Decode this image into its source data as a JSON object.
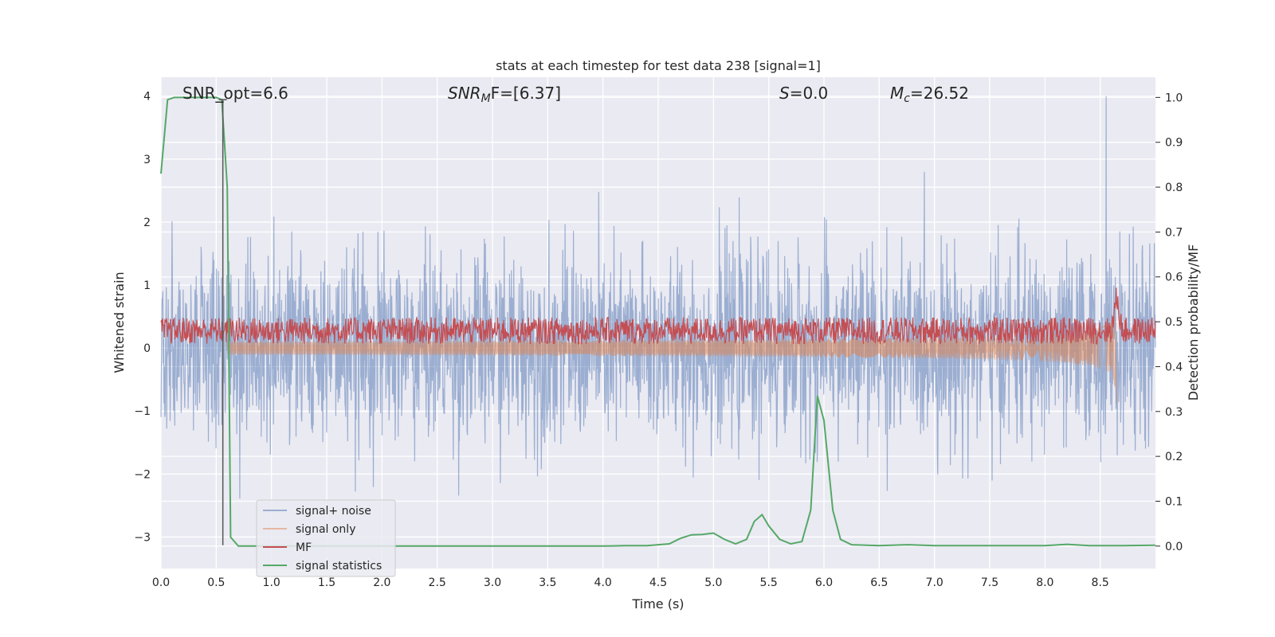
{
  "chart_data": {
    "type": "line",
    "title": "stats at each timestep for test data 238 [signal=1]",
    "xlabel": "Time (s)",
    "ylabel_left": "Whitened strain",
    "ylabel_right": "Detection probability/MF",
    "xlim": [
      0.0,
      9.0
    ],
    "ylim_left": [
      -3.5,
      4.3
    ],
    "ylim_right": [
      -0.05,
      1.045
    ],
    "x_ticks": [
      "0.0",
      "0.5",
      "1.0",
      "1.5",
      "2.0",
      "2.5",
      "3.0",
      "3.5",
      "4.0",
      "4.5",
      "5.0",
      "5.5",
      "6.0",
      "6.5",
      "7.0",
      "7.5",
      "8.0",
      "8.5"
    ],
    "y_left_ticks": [
      "4",
      "3",
      "2",
      "1",
      "0",
      "−1",
      "−2",
      "−3"
    ],
    "y_right_ticks": [
      "1.0",
      "0.9",
      "0.8",
      "0.7",
      "0.6",
      "0.5",
      "0.4",
      "0.3",
      "0.2",
      "0.1",
      "0.0"
    ],
    "grid": true,
    "legend_position": "lower-left",
    "annotations": {
      "snr_opt": "SNR_opt=6.6",
      "snr_mf_sym": "SNR",
      "snr_mf_sub": "M",
      "snr_mf_rest": "F=[6.37]",
      "s_sym": "S",
      "s_rest": "=0.0",
      "mc_sym": "M",
      "mc_sub": "c",
      "mc_rest": "=26.52"
    },
    "series": [
      {
        "name": "signal+ noise",
        "color": "#4c72b0",
        "axis": "left",
        "kind": "noise",
        "std": 0.75,
        "range_approx": [
          -2.6,
          4.0
        ]
      },
      {
        "name": "signal only",
        "color": "#dd8452",
        "axis": "left",
        "kind": "chirp",
        "merger_time": 8.65,
        "peak_amplitude": 1.0
      },
      {
        "name": "MF",
        "color": "#c44e52",
        "axis": "right",
        "kind": "band",
        "baseline": 0.48,
        "range_approx": [
          0.45,
          0.58
        ]
      },
      {
        "name": "signal statistics",
        "color": "#55a868",
        "axis": "right",
        "x": [
          0.0,
          0.06,
          0.12,
          0.2,
          0.3,
          0.4,
          0.5,
          0.55,
          0.6,
          0.63,
          0.7,
          1.0,
          2.0,
          3.0,
          4.0,
          4.2,
          4.4,
          4.6,
          4.7,
          4.8,
          4.9,
          5.0,
          5.1,
          5.2,
          5.3,
          5.37,
          5.44,
          5.5,
          5.6,
          5.7,
          5.8,
          5.88,
          5.94,
          6.0,
          6.08,
          6.15,
          6.25,
          6.5,
          6.75,
          7.0,
          7.5,
          8.0,
          8.2,
          8.4,
          8.7,
          9.0
        ],
        "y": [
          0.83,
          0.995,
          1.0,
          1.0,
          1.0,
          1.0,
          1.0,
          0.995,
          0.8,
          0.02,
          0.0,
          0.0,
          0.0,
          0.0,
          0.0,
          0.001,
          0.001,
          0.005,
          0.017,
          0.025,
          0.026,
          0.029,
          0.015,
          0.005,
          0.015,
          0.055,
          0.07,
          0.045,
          0.015,
          0.005,
          0.01,
          0.08,
          0.335,
          0.28,
          0.08,
          0.015,
          0.003,
          0.001,
          0.003,
          0.001,
          0.001,
          0.001,
          0.004,
          0.001,
          0.001,
          0.002
        ]
      }
    ]
  }
}
